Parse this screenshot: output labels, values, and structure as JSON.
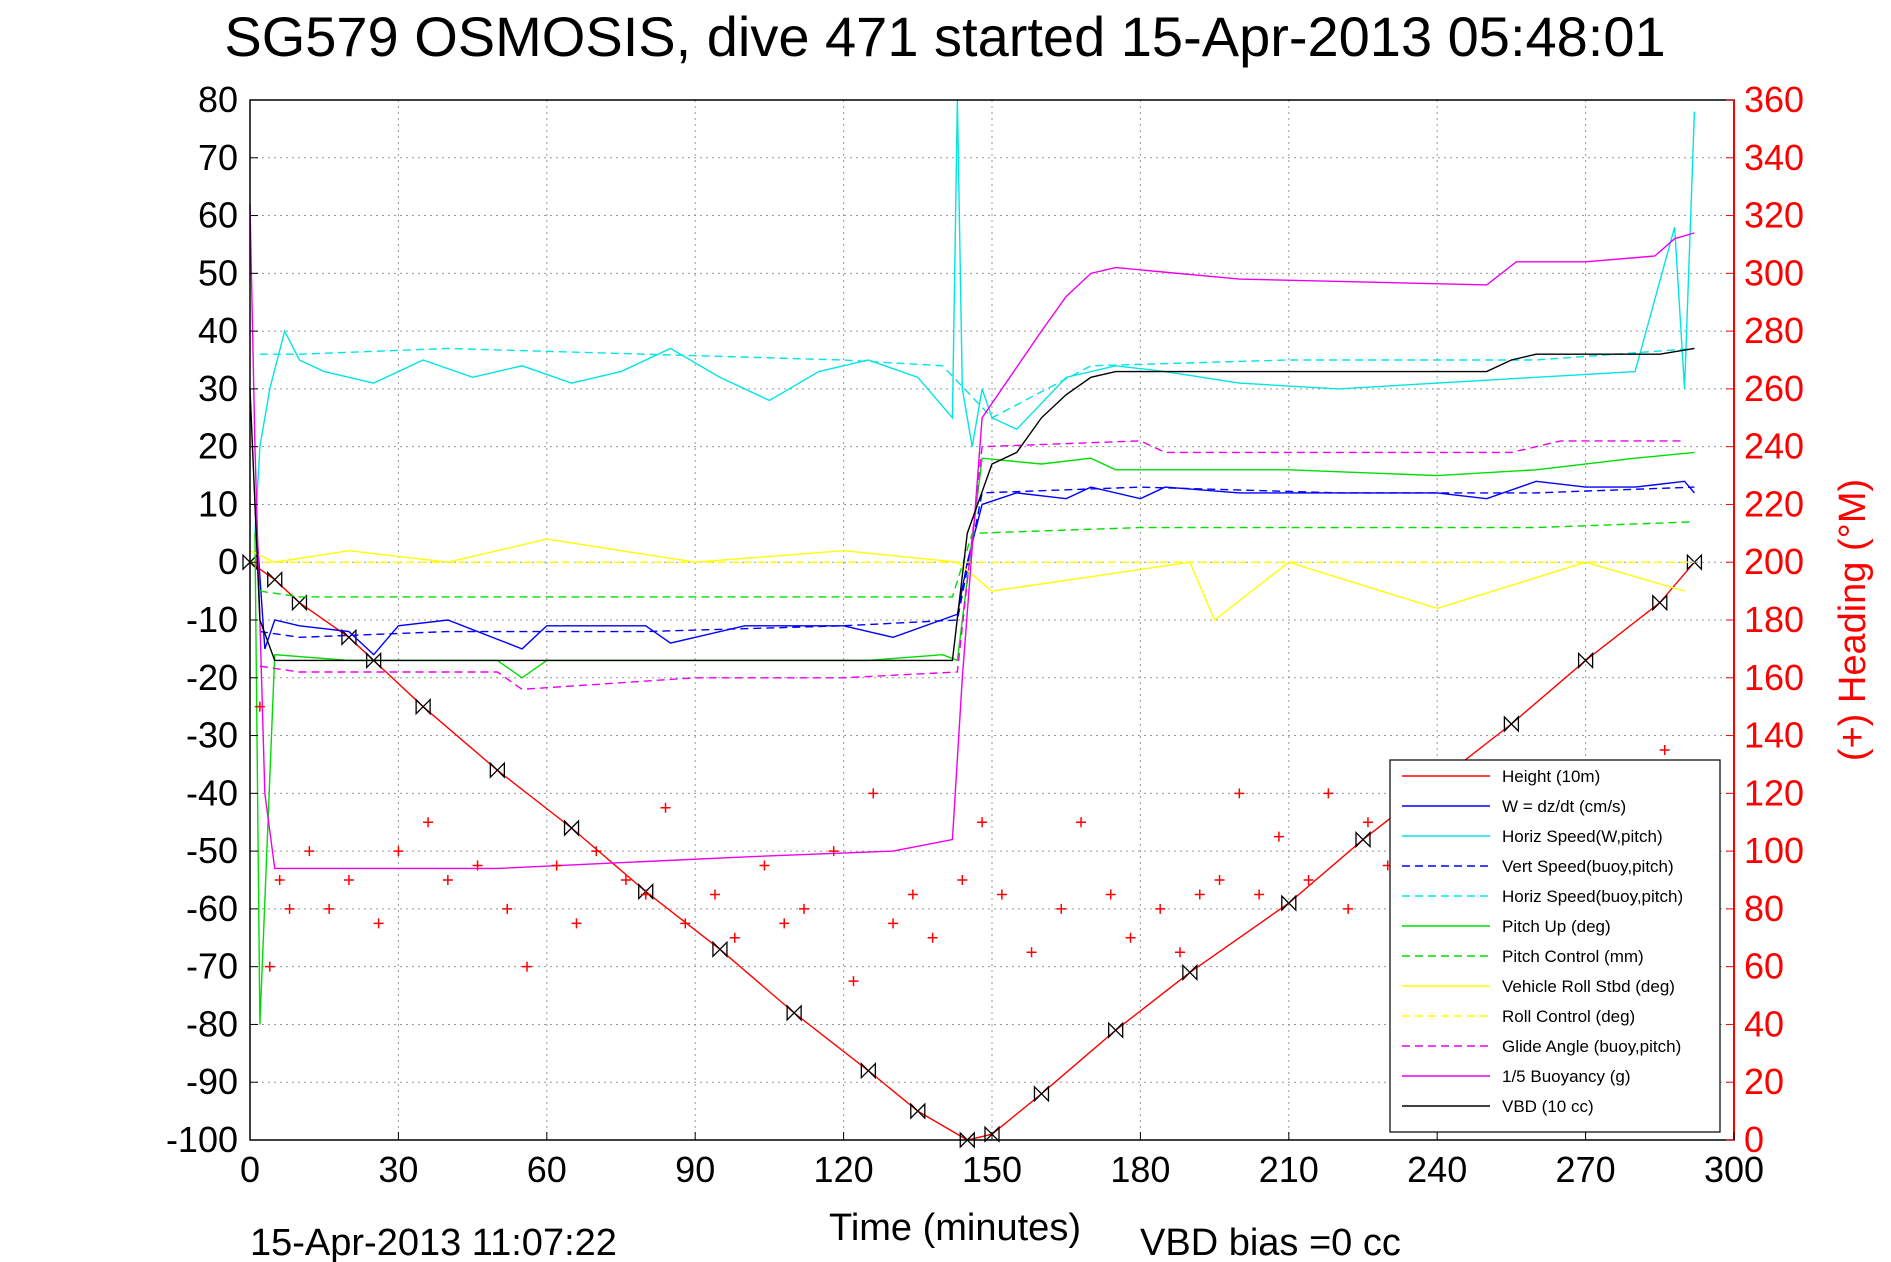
{
  "chart_data": {
    "type": "line",
    "title": "SG579 OSMOSIS, dive 471 started 15-Apr-2013 05:48:01",
    "xlabel": "Time (minutes)",
    "ylabel_right": "(+) Heading (°M)",
    "footer_left": "15-Apr-2013 11:07:22",
    "footer_right": "VBD bias =0 cc",
    "xlim": [
      0,
      300
    ],
    "ylim": [
      -100,
      80
    ],
    "ylim_right": [
      0,
      360
    ],
    "x_ticks": [
      "0",
      "30",
      "60",
      "90",
      "120",
      "150",
      "180",
      "210",
      "240",
      "270",
      "300"
    ],
    "y_ticks": [
      "-100",
      "-90",
      "-80",
      "-70",
      "-60",
      "-50",
      "-40",
      "-30",
      "-20",
      "-10",
      "0",
      "10",
      "20",
      "30",
      "40",
      "50",
      "60",
      "70",
      "80"
    ],
    "y_ticks_right": [
      "0",
      "20",
      "40",
      "60",
      "80",
      "100",
      "120",
      "140",
      "160",
      "180",
      "200",
      "220",
      "240",
      "260",
      "280",
      "300",
      "320",
      "340",
      "360"
    ],
    "grid": true,
    "legend_position": "bottom-right",
    "series": [
      {
        "name": "Height (10m)",
        "color": "#ff0000",
        "style": "solid",
        "x": [
          0,
          5,
          10,
          20,
          25,
          35,
          50,
          65,
          80,
          95,
          110,
          125,
          135,
          145,
          150,
          160,
          175,
          190,
          210,
          225,
          240,
          255,
          270,
          285,
          292
        ],
        "y": [
          0,
          -3,
          -7,
          -13,
          -17,
          -25,
          -36,
          -46,
          -57,
          -67,
          -78,
          -88,
          -95,
          -100,
          -99,
          -92,
          -81,
          -71,
          -59,
          -48,
          -38,
          -28,
          -17,
          -7,
          0
        ]
      },
      {
        "name": "W = dz/dt (cm/s)",
        "color": "#0000ff",
        "style": "solid",
        "x": [
          1,
          3,
          5,
          10,
          20,
          25,
          30,
          40,
          55,
          60,
          80,
          85,
          100,
          120,
          130,
          143,
          145,
          148,
          155,
          165,
          170,
          180,
          185,
          200,
          220,
          240,
          250,
          260,
          270,
          280,
          290,
          292
        ],
        "y": [
          10,
          -15,
          -10,
          -11,
          -12,
          -16,
          -11,
          -10,
          -15,
          -11,
          -11,
          -14,
          -11,
          -11,
          -13,
          -9,
          0,
          10,
          12,
          11,
          13,
          11,
          13,
          12,
          12,
          12,
          11,
          14,
          13,
          13,
          14,
          12
        ]
      },
      {
        "name": "Horiz Speed(W,pitch)",
        "color": "#00e5e5",
        "style": "solid",
        "x": [
          1,
          2,
          4,
          7,
          10,
          15,
          20,
          25,
          35,
          45,
          55,
          65,
          75,
          85,
          95,
          105,
          115,
          125,
          135,
          142,
          143,
          144,
          146,
          148,
          150,
          155,
          165,
          175,
          185,
          200,
          220,
          240,
          260,
          280,
          288,
          290,
          292
        ],
        "y": [
          5,
          20,
          30,
          40,
          35,
          33,
          32,
          31,
          35,
          32,
          34,
          31,
          33,
          37,
          32,
          28,
          33,
          35,
          32,
          25,
          80,
          30,
          20,
          30,
          25,
          23,
          32,
          34,
          33,
          31,
          30,
          31,
          32,
          33,
          58,
          30,
          78
        ]
      },
      {
        "name": "Vert Speed(buoy,pitch)",
        "color": "#0000ff",
        "style": "dashed",
        "x": [
          2,
          10,
          40,
          80,
          120,
          143,
          148,
          180,
          220,
          260,
          292
        ],
        "y": [
          -12,
          -13,
          -12,
          -12,
          -11,
          -10,
          12,
          13,
          12,
          12,
          13
        ]
      },
      {
        "name": "Horiz Speed(buoy,pitch)",
        "color": "#00e5e5",
        "style": "dashed",
        "x": [
          2,
          10,
          40,
          80,
          120,
          140,
          150,
          170,
          210,
          260,
          292
        ],
        "y": [
          36,
          36,
          37,
          36,
          35,
          34,
          25,
          34,
          35,
          35,
          37
        ]
      },
      {
        "name": "Pitch Up (deg)",
        "color": "#00dd00",
        "style": "solid",
        "x": [
          1,
          2,
          5,
          20,
          50,
          55,
          60,
          100,
          125,
          140,
          143,
          148,
          160,
          170,
          175,
          210,
          240,
          260,
          280,
          292
        ],
        "y": [
          5,
          -80,
          -16,
          -17,
          -17,
          -20,
          -17,
          -17,
          -17,
          -16,
          -17,
          18,
          17,
          18,
          16,
          16,
          15,
          16,
          18,
          19
        ]
      },
      {
        "name": "Pitch Control (mm)",
        "color": "#00dd00",
        "style": "dashed",
        "x": [
          2,
          10,
          30,
          60,
          90,
          120,
          142,
          146,
          180,
          220,
          260,
          292
        ],
        "y": [
          -5,
          -6,
          -6,
          -6,
          -6,
          -6,
          -6,
          5,
          6,
          6,
          6,
          7
        ]
      },
      {
        "name": "Vehicle Roll Stbd (deg)",
        "color": "#ffff00",
        "style": "solid",
        "x": [
          0,
          5,
          20,
          40,
          60,
          90,
          120,
          143,
          150,
          190,
          195,
          210,
          240,
          270,
          290
        ],
        "y": [
          2,
          0,
          2,
          0,
          4,
          0,
          2,
          0,
          -5,
          0,
          -10,
          0,
          -8,
          0,
          -5
        ]
      },
      {
        "name": "Roll Control (deg)",
        "color": "#ffff00",
        "style": "dashed",
        "x": [
          0,
          30,
          60,
          90,
          120,
          143,
          160,
          200,
          240,
          280,
          292
        ],
        "y": [
          0,
          0,
          0,
          0,
          0,
          0,
          0,
          0,
          0,
          0,
          0
        ]
      },
      {
        "name": "Glide Angle (buoy,pitch)",
        "color": "#ee00ee",
        "style": "dashed",
        "x": [
          2,
          10,
          50,
          55,
          90,
          120,
          143,
          148,
          180,
          185,
          220,
          255,
          265,
          290
        ],
        "y": [
          -18,
          -19,
          -19,
          -22,
          -20,
          -20,
          -19,
          20,
          21,
          19,
          19,
          19,
          21,
          21
        ]
      },
      {
        "name": "1/5 Buoyancy (g)",
        "color": "#ee00ee",
        "style": "solid",
        "x": [
          0,
          1,
          3,
          5,
          50,
          100,
          130,
          142,
          144,
          148,
          160,
          165,
          170,
          175,
          200,
          250,
          256,
          270,
          284,
          288,
          292
        ],
        "y": [
          62,
          20,
          -40,
          -53,
          -53,
          -51,
          -50,
          -48,
          -20,
          25,
          40,
          46,
          50,
          51,
          49,
          48,
          52,
          52,
          53,
          56,
          57
        ]
      },
      {
        "name": "VBD (10 cc)",
        "color": "#000000",
        "style": "solid",
        "x": [
          0,
          2,
          5,
          30,
          90,
          142,
          145,
          150,
          155,
          160,
          165,
          170,
          175,
          200,
          250,
          255,
          260,
          285,
          292
        ],
        "y": [
          30,
          -10,
          -17,
          -17,
          -17,
          -17,
          5,
          17,
          19,
          25,
          29,
          32,
          33,
          33,
          33,
          35,
          36,
          36,
          37
        ]
      },
      {
        "name": "Heading",
        "color": "#ff0000",
        "style": "markers",
        "axis": "right",
        "x": [
          2,
          4,
          6,
          8,
          12,
          16,
          20,
          26,
          30,
          36,
          40,
          46,
          52,
          56,
          62,
          66,
          70,
          76,
          80,
          84,
          88,
          94,
          98,
          104,
          108,
          112,
          118,
          122,
          126,
          130,
          134,
          138,
          144,
          148,
          152,
          158,
          164,
          168,
          174,
          178,
          184,
          188,
          192,
          196,
          200,
          204,
          208,
          214,
          218,
          222,
          226,
          230,
          236,
          240,
          246,
          250,
          254,
          260,
          264,
          270,
          276,
          282,
          286,
          290
        ],
        "y": [
          150,
          60,
          90,
          80,
          100,
          80,
          90,
          75,
          100,
          110,
          90,
          95,
          80,
          60,
          95,
          75,
          100,
          90,
          85,
          115,
          75,
          85,
          70,
          95,
          75,
          80,
          100,
          55,
          120,
          75,
          85,
          70,
          90,
          110,
          85,
          65,
          80,
          110,
          85,
          70,
          80,
          65,
          85,
          90,
          120,
          85,
          105,
          90,
          120,
          80,
          110,
          95,
          125,
          85,
          110,
          95,
          130,
          105,
          120,
          100,
          130,
          110,
          135,
          115
        ]
      }
    ]
  }
}
